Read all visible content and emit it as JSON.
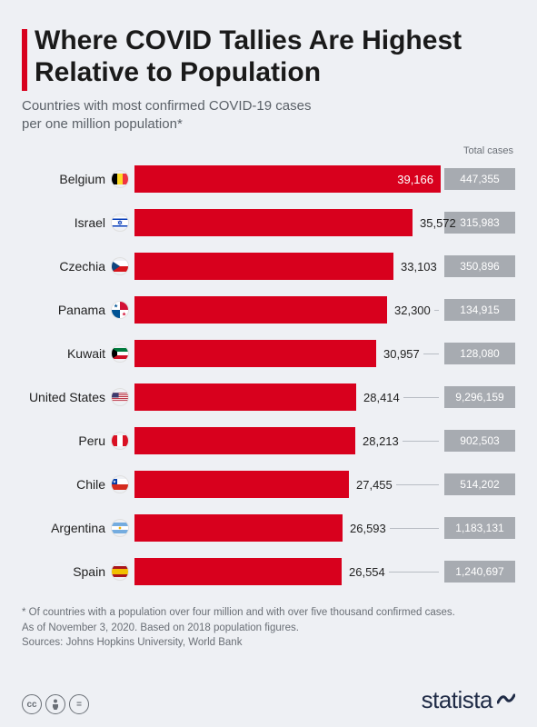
{
  "title": "Where COVID Tallies Are Highest Relative to Population",
  "subtitle": "Countries with most confirmed COVID-19 cases per one million population*",
  "column_header": "Total cases",
  "chart": {
    "type": "bar",
    "max_value": 39166,
    "bar_color": "#d8001d",
    "label_fontsize": 14,
    "value_fontsize": 13,
    "total_bg": "#a7abb1",
    "background_color": "#eef0f4",
    "rows": [
      {
        "country": "Belgium",
        "per_million": "39,166",
        "val": 39166,
        "total": "447,355",
        "flag": "be",
        "inside": true
      },
      {
        "country": "Israel",
        "per_million": "35,572",
        "val": 35572,
        "total": "315,983",
        "flag": "il",
        "inside": false
      },
      {
        "country": "Czechia",
        "per_million": "33,103",
        "val": 33103,
        "total": "350,896",
        "flag": "cz",
        "inside": false
      },
      {
        "country": "Panama",
        "per_million": "32,300",
        "val": 32300,
        "total": "134,915",
        "flag": "pa",
        "inside": false
      },
      {
        "country": "Kuwait",
        "per_million": "30,957",
        "val": 30957,
        "total": "128,080",
        "flag": "kw",
        "inside": false
      },
      {
        "country": "United States",
        "per_million": "28,414",
        "val": 28414,
        "total": "9,296,159",
        "flag": "us",
        "inside": false
      },
      {
        "country": "Peru",
        "per_million": "28,213",
        "val": 28213,
        "total": "902,503",
        "flag": "pe",
        "inside": false
      },
      {
        "country": "Chile",
        "per_million": "27,455",
        "val": 27455,
        "total": "514,202",
        "flag": "cl",
        "inside": false
      },
      {
        "country": "Argentina",
        "per_million": "26,593",
        "val": 26593,
        "total": "1,183,131",
        "flag": "ar",
        "inside": false
      },
      {
        "country": "Spain",
        "per_million": "26,554",
        "val": 26554,
        "total": "1,240,697",
        "flag": "es",
        "inside": false
      }
    ]
  },
  "footnote1": "* Of countries with a population over four million and with over five thousand confirmed cases.",
  "footnote2": "As of November 3, 2020. Based on 2018 population figures.",
  "sources": "Sources: Johns Hopkins University, World Bank",
  "brand": "statista",
  "cc": {
    "a": "cc",
    "b": "🄯",
    "c": "="
  }
}
